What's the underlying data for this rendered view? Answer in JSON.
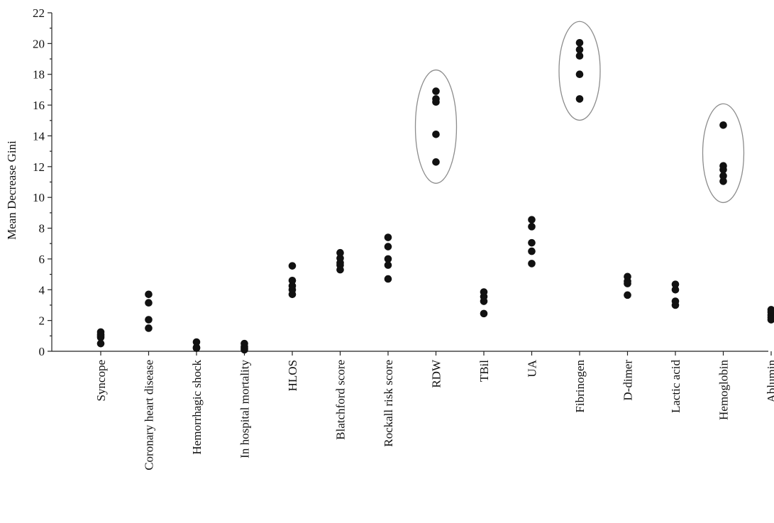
{
  "chart_data": {
    "type": "scatter",
    "title": "",
    "xlabel": "",
    "ylabel": "Mean Decrease Gini",
    "ylim": [
      0,
      22
    ],
    "yticks": [
      0,
      2,
      4,
      6,
      8,
      10,
      12,
      14,
      16,
      18,
      20,
      22
    ],
    "grid": false,
    "legend": "none",
    "categories": [
      "Syncope",
      "Coronary heart disease",
      "Hemorrhagic shock",
      "In hospital mortality",
      "HLOS",
      "Blatchford score",
      "Rockall risk score",
      "RDW",
      "TBil",
      "UA",
      "Fibrinogen",
      "D-dimer",
      "Lactic acid",
      "Hemoglobin",
      "Ablumin"
    ],
    "values": [
      [
        0.5,
        0.9,
        1.0,
        1.1,
        1.25
      ],
      [
        1.5,
        2.05,
        3.15,
        3.7
      ],
      [
        0.2,
        0.25,
        0.6
      ],
      [
        0.1,
        0.2,
        0.3,
        0.5
      ],
      [
        3.7,
        4.0,
        4.25,
        4.6,
        5.55
      ],
      [
        5.3,
        5.6,
        5.75,
        6.05,
        6.4
      ],
      [
        4.7,
        5.6,
        6.0,
        6.8,
        7.4
      ],
      [
        12.3,
        14.1,
        16.2,
        16.4,
        16.9
      ],
      [
        2.45,
        3.25,
        3.55,
        3.85
      ],
      [
        5.7,
        6.5,
        7.05,
        8.1,
        8.55
      ],
      [
        16.4,
        18.0,
        19.2,
        19.6,
        20.05
      ],
      [
        3.65,
        4.4,
        4.55,
        4.85
      ],
      [
        3.0,
        3.25,
        4.0,
        4.35
      ],
      [
        11.05,
        11.4,
        11.8,
        12.05,
        14.7
      ],
      [
        2.05,
        2.2,
        2.35,
        2.55,
        2.7
      ]
    ],
    "highlighted": [
      "RDW",
      "Fibrinogen",
      "Hemoglobin"
    ],
    "colors": {
      "point": "#111111",
      "axis": "#222222",
      "ellipse": "#8c8c8c"
    }
  }
}
